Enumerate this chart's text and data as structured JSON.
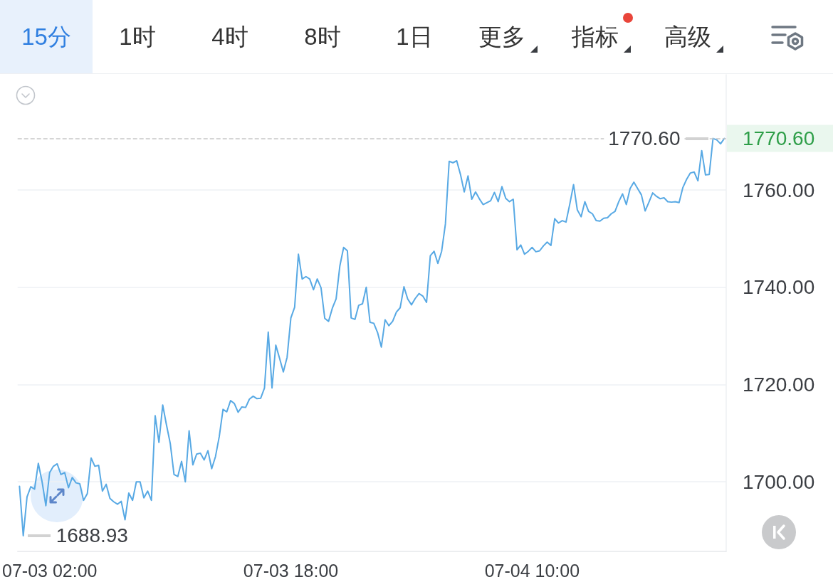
{
  "chart_data": {
    "type": "line",
    "color": "#58a9e4",
    "marker": "none",
    "grid": "y",
    "annotations": [
      "15分",
      "1时",
      "4时",
      "8时",
      "1日",
      "更多",
      "指标",
      "高级",
      "1770.60",
      "1688.93"
    ],
    "categories": [
      null,
      null,
      null,
      null,
      null,
      null,
      null,
      null,
      "07-03 02:00",
      null,
      null,
      null,
      null,
      null,
      null,
      null,
      null,
      null,
      null,
      null,
      null,
      null,
      null,
      null,
      null,
      null,
      null,
      null,
      null,
      null,
      null,
      null,
      null,
      null,
      null,
      null,
      null,
      null,
      null,
      null,
      null,
      null,
      null,
      null,
      null,
      null,
      null,
      null,
      null,
      null,
      null,
      null,
      null,
      null,
      null,
      null,
      null,
      null,
      null,
      null,
      null,
      null,
      null,
      null,
      null,
      null,
      null,
      null,
      null,
      null,
      null,
      null,
      "07-03 18:00",
      null,
      null,
      null,
      null,
      null,
      null,
      null,
      null,
      null,
      null,
      null,
      null,
      null,
      null,
      null,
      null,
      null,
      null,
      null,
      null,
      null,
      null,
      null,
      null,
      null,
      null,
      null,
      null,
      null,
      null,
      null,
      null,
      null,
      null,
      null,
      null,
      null,
      null,
      null,
      null,
      null,
      null,
      null,
      null,
      null,
      null,
      null,
      null,
      null,
      null,
      null,
      null,
      null,
      null,
      null,
      null,
      null,
      null,
      null,
      null,
      null,
      null,
      null,
      "07-04 10:00",
      null,
      null,
      null,
      null,
      null,
      null,
      null,
      null,
      null,
      null,
      null,
      null,
      null,
      null,
      null,
      null,
      null,
      null,
      null,
      null,
      null,
      null,
      null,
      null,
      null,
      null,
      null,
      null,
      null,
      null,
      null,
      null,
      null,
      null,
      null,
      null,
      null,
      null,
      null,
      null,
      null,
      null,
      null,
      null,
      null,
      null,
      null,
      null,
      null,
      null,
      null
    ],
    "ylim": [
      1685.7,
      1783.7
    ],
    "yticks": [
      {
        "value": 1700,
        "label": "1700.00"
      },
      {
        "value": 1720,
        "label": "1720.00"
      },
      {
        "value": 1740,
        "label": "1740.00"
      },
      {
        "value": 1760,
        "label": "1760.00"
      }
    ],
    "ref_lines": [
      {
        "axis": "y",
        "value": 1770.6,
        "label": "1770.60",
        "color": "#c8c8c8",
        "line_style": "dashed"
      }
    ],
    "values": [
      1699.1,
      1688.93,
      1696.9,
      1699.0,
      1698.5,
      1703.8,
      1700.0,
      1695.1,
      1701.9,
      1703.2,
      1703.7,
      1701.5,
      1701.9,
      1698.8,
      1700.9,
      1699.8,
      1699.6,
      1696.2,
      1697.6,
      1704.9,
      1703.2,
      1703.4,
      1698.1,
      1699.5,
      1696.6,
      1695.9,
      1695.4,
      1696.0,
      1692.2,
      1697.7,
      1696.2,
      1700.0,
      1700.0,
      1696.7,
      1698.1,
      1696.2,
      1713.6,
      1708.1,
      1715.8,
      1711.7,
      1707.9,
      1701.5,
      1701.1,
      1704.2,
      1700.0,
      1710.5,
      1703.5,
      1705.7,
      1705.9,
      1704.5,
      1706.4,
      1702.7,
      1705.2,
      1709.3,
      1714.9,
      1714.4,
      1716.7,
      1716.1,
      1714.3,
      1715.4,
      1715.3,
      1717.0,
      1717.6,
      1717.1,
      1717.2,
      1719.3,
      1730.8,
      1719.3,
      1728.1,
      1725.4,
      1722.6,
      1725.6,
      1733.7,
      1735.9,
      1746.8,
      1741.7,
      1742.2,
      1741.7,
      1739.5,
      1741.7,
      1739.9,
      1733.6,
      1733.0,
      1735.7,
      1737.6,
      1744.4,
      1748.2,
      1747.5,
      1733.7,
      1733.4,
      1736.3,
      1736.6,
      1740.0,
      1732.8,
      1732.6,
      1730.7,
      1727.7,
      1733.3,
      1732.1,
      1733.0,
      1734.9,
      1735.8,
      1740.1,
      1737.6,
      1736.4,
      1737.7,
      1738.7,
      1738.2,
      1736.9,
      1746.5,
      1747.4,
      1744.9,
      1747.4,
      1753.0,
      1765.9,
      1765.6,
      1766.0,
      1763.2,
      1759.6,
      1762.9,
      1758.1,
      1759.6,
      1758.2,
      1757.0,
      1757.4,
      1757.8,
      1759.5,
      1757.6,
      1760.7,
      1758.3,
      1757.6,
      1758.1,
      1747.7,
      1748.7,
      1746.8,
      1747.4,
      1748.2,
      1747.3,
      1747.5,
      1748.5,
      1749.3,
      1748.6,
      1754.1,
      1753.2,
      1753.7,
      1753.4,
      1757.1,
      1761.1,
      1755.9,
      1754.5,
      1757.6,
      1755.6,
      1755.1,
      1753.7,
      1753.6,
      1754.2,
      1754.3,
      1755.1,
      1755.6,
      1757.6,
      1759.2,
      1757.0,
      1760.3,
      1761.6,
      1760.3,
      1759.0,
      1755.7,
      1757.5,
      1759.4,
      1758.7,
      1758.2,
      1758.4,
      1757.6,
      1757.5,
      1757.6,
      1757.4,
      1760.5,
      1762.2,
      1763.5,
      1763.7,
      1761.9,
      1768.1,
      1763.1,
      1763.2,
      1770.6,
      1770.3,
      1769.5,
      1770.6
    ]
  }
}
